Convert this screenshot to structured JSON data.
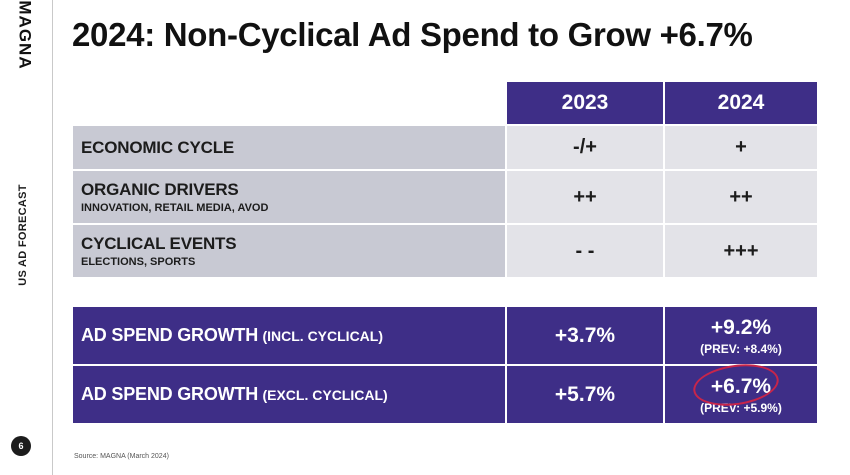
{
  "brand": {
    "logo_text": "MAGNA"
  },
  "sidebar": {
    "label": "US AD FORECAST",
    "page_number": "6"
  },
  "title": "2024: Non-Cyclical Ad Spend to Grow +6.7%",
  "columns": {
    "y2023": "2023",
    "y2024": "2024"
  },
  "drivers": [
    {
      "label": "ECONOMIC CYCLE",
      "sub": "",
      "v2023": "-/+",
      "v2024": "+"
    },
    {
      "label": "ORGANIC DRIVERS",
      "sub": "INNOVATION, RETAIL MEDIA, AVOD",
      "v2023": "++",
      "v2024": "++"
    },
    {
      "label": "CYCLICAL EVENTS",
      "sub": "ELECTIONS, SPORTS",
      "v2023": "- -",
      "v2024": "+++"
    }
  ],
  "growth": [
    {
      "label": "AD SPEND GROWTH",
      "qualifier": "(INCL. CYCLICAL)",
      "v2023": "+3.7%",
      "v2024": "+9.2%",
      "prev2024": "(PREV: +8.4%)"
    },
    {
      "label": "AD SPEND GROWTH",
      "qualifier": "(EXCL. CYCLICAL)",
      "v2023": "+5.7%",
      "v2024": "+6.7%",
      "prev2024": "(PREV: +5.9%)"
    }
  ],
  "source": "Source: MAGNA (March 2024)",
  "colors": {
    "accent_purple": "#3e2e87",
    "label_gray": "#c8c9d3",
    "value_gray": "#e3e3e8",
    "highlight_circle": "#c8254a"
  }
}
